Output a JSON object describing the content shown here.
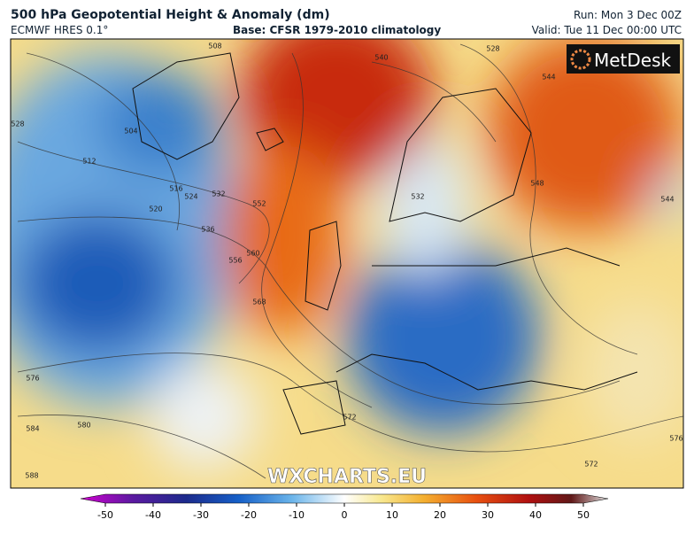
{
  "header": {
    "title": "500 hPa Geopotential Height & Anomaly (dm)",
    "model": "ECMWF HRES 0.1°",
    "base": "Base: CFSR 1979-2010 climatology",
    "run": "Run: Mon 3 Dec 00Z",
    "valid": "Valid: Tue 11 Dec 00:00 UTC"
  },
  "logo": "MetDesk",
  "watermark": "WXCHARTS.EU",
  "contour_labels": [
    508,
    504,
    512,
    516,
    520,
    524,
    528,
    532,
    536,
    556,
    560,
    552,
    568,
    540,
    528,
    544,
    548,
    532,
    576,
    584,
    580,
    588,
    572,
    572,
    576,
    544
  ],
  "colorbar": {
    "range": [
      -50,
      50
    ],
    "ticks": [
      -50,
      -40,
      -30,
      -20,
      -10,
      0,
      10,
      20,
      30,
      40,
      50
    ]
  }
}
